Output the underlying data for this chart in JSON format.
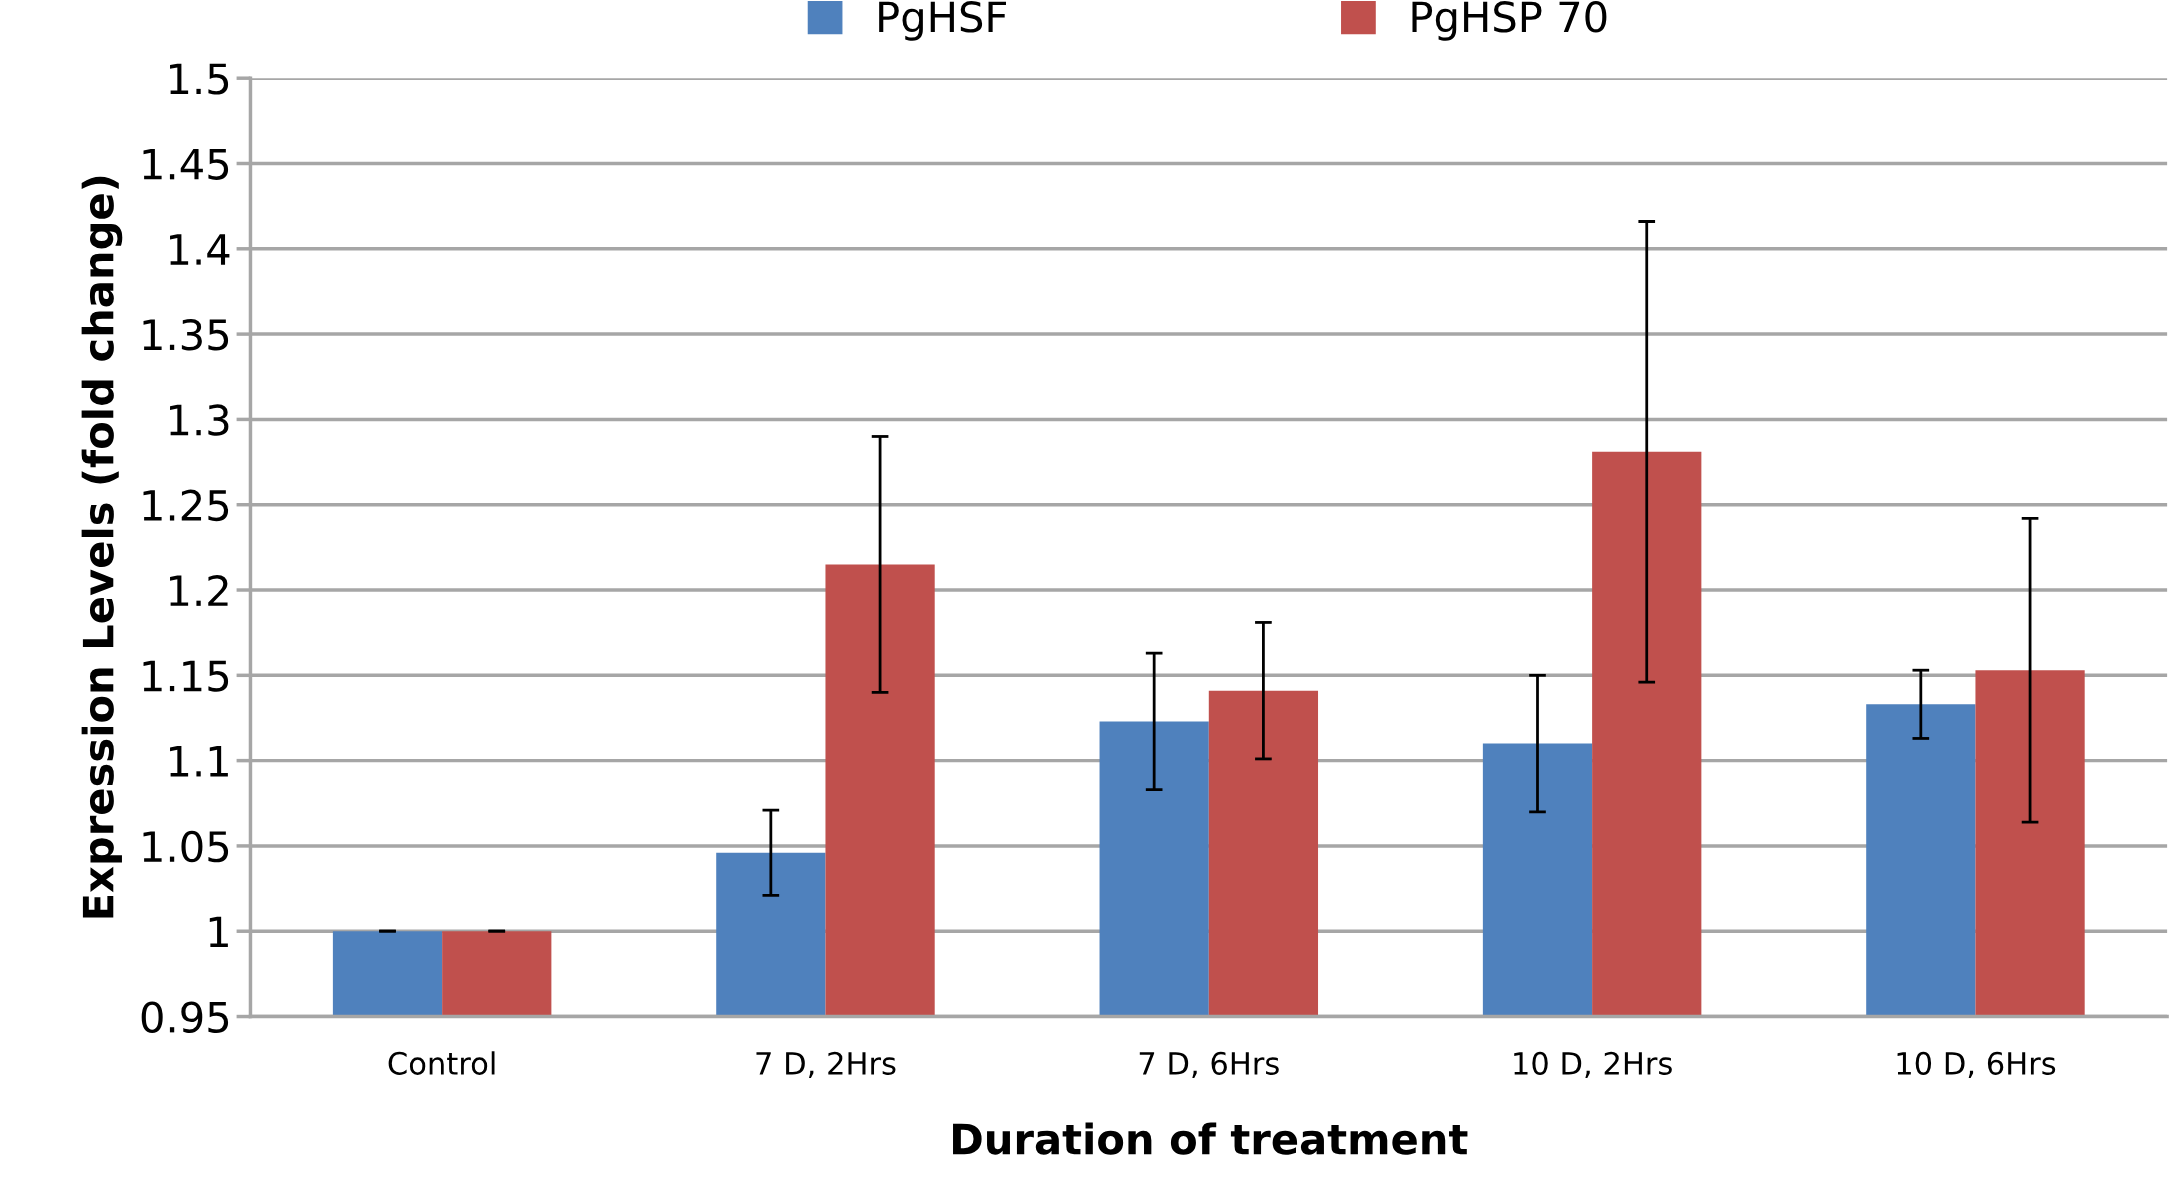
{
  "chart_data": {
    "type": "bar",
    "xlabel": "Duration of treatment",
    "ylabel": "Expression Levels (fold change)",
    "categories": [
      "Control",
      "7 D, 2Hrs",
      "7 D, 6Hrs",
      "10 D, 2Hrs",
      "10 D, 6Hrs"
    ],
    "series": [
      {
        "name": "PgHSF",
        "color": "#4f81bd",
        "values": [
          1.0,
          1.046,
          1.123,
          1.11,
          1.133
        ],
        "errors": [
          0,
          0.025,
          0.04,
          0.04,
          0.02
        ]
      },
      {
        "name": "PgHSP 70",
        "color": "#c0504d",
        "values": [
          1.0,
          1.215,
          1.141,
          1.281,
          1.153
        ],
        "errors": [
          0,
          0.075,
          0.04,
          0.135,
          0.089
        ]
      }
    ],
    "ylim": [
      0.95,
      1.5
    ],
    "yticks": [
      {
        "value": 0.95,
        "label": "0.95"
      },
      {
        "value": 1.0,
        "label": "1"
      },
      {
        "value": 1.05,
        "label": "1.05"
      },
      {
        "value": 1.1,
        "label": "1.1"
      },
      {
        "value": 1.15,
        "label": "1.15"
      },
      {
        "value": 1.2,
        "label": "1.2"
      },
      {
        "value": 1.25,
        "label": "1.25"
      },
      {
        "value": 1.3,
        "label": "1.3"
      },
      {
        "value": 1.35,
        "label": "1.35"
      },
      {
        "value": 1.4,
        "label": "1.4"
      },
      {
        "value": 1.45,
        "label": "1.45"
      },
      {
        "value": 1.5,
        "label": "1.5"
      }
    ],
    "grid": "y",
    "legend": "top"
  }
}
